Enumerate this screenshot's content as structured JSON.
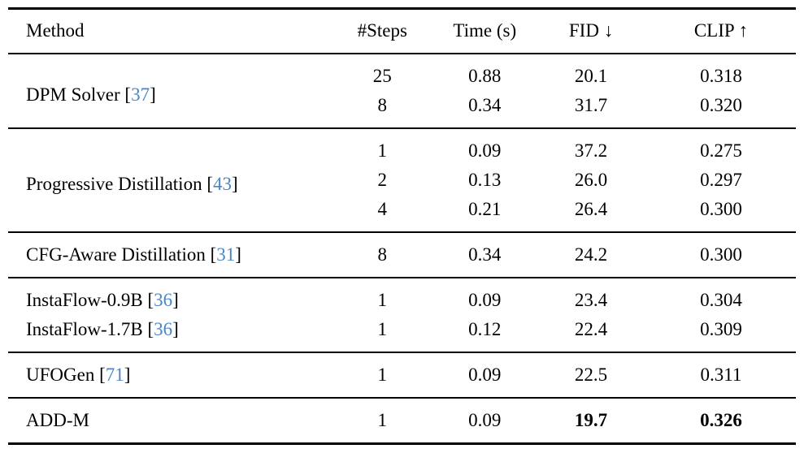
{
  "colors": {
    "background": "#ffffff",
    "text": "#000000",
    "rule": "#000000",
    "citation": "#4a86c8"
  },
  "refs": {
    "open": "[",
    "close": "]"
  },
  "table": {
    "columns": [
      "Method",
      "#Steps",
      "Time (s)",
      "FID ↓",
      "CLIP ↑"
    ],
    "groups": [
      {
        "method": {
          "name": "DPM Solver",
          "cite": "37"
        },
        "rows": [
          {
            "steps": "25",
            "time": "0.88",
            "fid": "20.1",
            "clip": "0.318"
          },
          {
            "steps": "8",
            "time": "0.34",
            "fid": "31.7",
            "clip": "0.320"
          }
        ]
      },
      {
        "method": {
          "name": "Progressive Distillation",
          "cite": "43"
        },
        "rows": [
          {
            "steps": "1",
            "time": "0.09",
            "fid": "37.2",
            "clip": "0.275"
          },
          {
            "steps": "2",
            "time": "0.13",
            "fid": "26.0",
            "clip": "0.297"
          },
          {
            "steps": "4",
            "time": "0.21",
            "fid": "26.4",
            "clip": "0.300"
          }
        ]
      },
      {
        "method": {
          "name": "CFG-Aware Distillation",
          "cite": "31"
        },
        "rows": [
          {
            "steps": "8",
            "time": "0.34",
            "fid": "24.2",
            "clip": "0.300"
          }
        ]
      },
      {
        "rows": [
          {
            "method": {
              "name": "InstaFlow-0.9B",
              "cite": "36"
            },
            "steps": "1",
            "time": "0.09",
            "fid": "23.4",
            "clip": "0.304"
          },
          {
            "method": {
              "name": "InstaFlow-1.7B",
              "cite": "36"
            },
            "steps": "1",
            "time": "0.12",
            "fid": "22.4",
            "clip": "0.309"
          }
        ]
      },
      {
        "method": {
          "name": "UFOGen",
          "cite": "71"
        },
        "rows": [
          {
            "steps": "1",
            "time": "0.09",
            "fid": "22.5",
            "clip": "0.311"
          }
        ]
      },
      {
        "method": {
          "name": "ADD-M"
        },
        "rows": [
          {
            "steps": "1",
            "time": "0.09",
            "fid": "19.7",
            "clip": "0.326"
          }
        ]
      }
    ]
  }
}
